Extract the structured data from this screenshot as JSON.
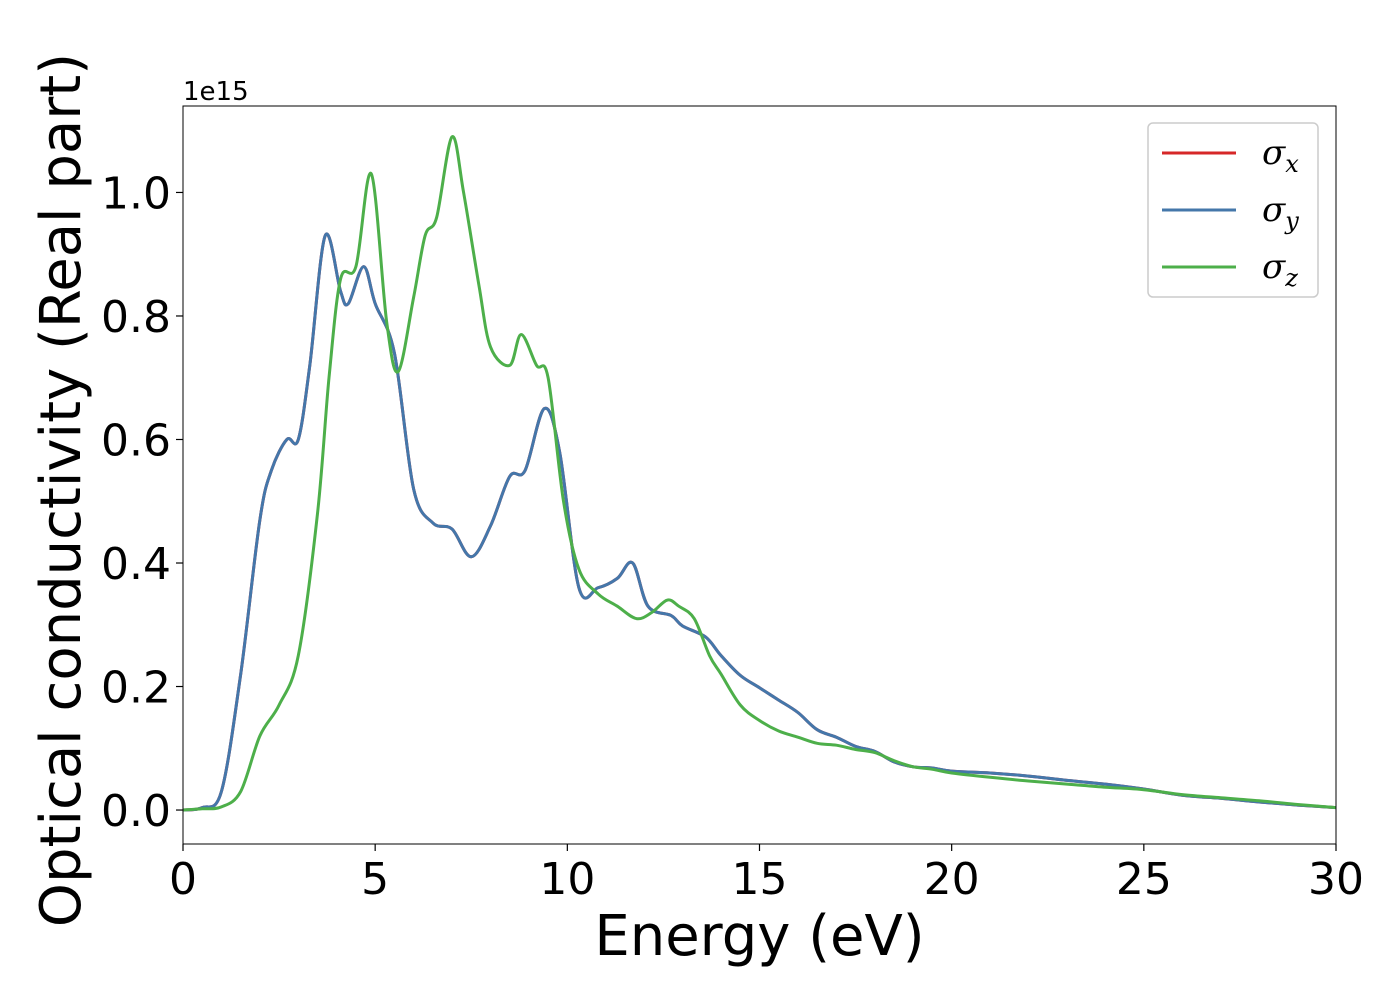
{
  "chart_data": {
    "type": "line",
    "xlabel": "Energy (eV)",
    "ylabel": "Optical conductivity (Real part)",
    "y_offset_text": "1e15",
    "xlim": [
      0,
      30
    ],
    "ylim": [
      -0.055,
      1.14
    ],
    "x_ticks": [
      0,
      5,
      10,
      15,
      20,
      25,
      30
    ],
    "x_tick_labels": [
      "0",
      "5",
      "10",
      "15",
      "20",
      "25",
      "30"
    ],
    "y_ticks": [
      0.0,
      0.2,
      0.4,
      0.6,
      0.8,
      1.0
    ],
    "y_tick_labels": [
      "0.0",
      "0.2",
      "0.4",
      "0.6",
      "0.8",
      "1.0"
    ],
    "grid": false,
    "legend_position": "top-right",
    "series": [
      {
        "name": "σx",
        "symbol": "σ",
        "sub": "x",
        "color": "#d62728",
        "x": [
          0,
          0.5,
          1,
          1.5,
          2,
          2.3,
          2.7,
          3,
          3.3,
          3.7,
          4.1,
          4.3,
          4.7,
          5,
          5.5,
          6,
          6.5,
          7,
          7.5,
          8,
          8.5,
          8.9,
          9.4,
          9.8,
          10.3,
          10.8,
          11.3,
          11.7,
          12.1,
          12.7,
          13,
          13.6,
          14,
          14.5,
          15,
          15.5,
          16,
          16.5,
          17,
          17.5,
          18,
          18.5,
          19,
          19.5,
          20,
          21,
          22,
          23,
          24,
          25,
          26,
          27,
          28,
          29,
          30
        ],
        "y": [
          0.0,
          0.004,
          0.03,
          0.22,
          0.47,
          0.55,
          0.6,
          0.6,
          0.72,
          0.93,
          0.84,
          0.82,
          0.88,
          0.82,
          0.74,
          0.52,
          0.465,
          0.455,
          0.41,
          0.46,
          0.54,
          0.55,
          0.65,
          0.58,
          0.36,
          0.36,
          0.375,
          0.4,
          0.33,
          0.315,
          0.298,
          0.28,
          0.25,
          0.218,
          0.198,
          0.178,
          0.158,
          0.13,
          0.118,
          0.103,
          0.095,
          0.078,
          0.07,
          0.068,
          0.063,
          0.06,
          0.055,
          0.048,
          0.042,
          0.034,
          0.024,
          0.019,
          0.013,
          0.008,
          0.004
        ]
      },
      {
        "name": "σy",
        "symbol": "σ",
        "sub": "y",
        "color": "#4477aa",
        "x": [
          0,
          0.5,
          1,
          1.5,
          2,
          2.3,
          2.7,
          3,
          3.3,
          3.7,
          4.1,
          4.3,
          4.7,
          5,
          5.5,
          6,
          6.5,
          7,
          7.5,
          8,
          8.5,
          8.9,
          9.4,
          9.8,
          10.3,
          10.8,
          11.3,
          11.7,
          12.1,
          12.7,
          13,
          13.6,
          14,
          14.5,
          15,
          15.5,
          16,
          16.5,
          17,
          17.5,
          18,
          18.5,
          19,
          19.5,
          20,
          21,
          22,
          23,
          24,
          25,
          26,
          27,
          28,
          29,
          30
        ],
        "y": [
          0.0,
          0.004,
          0.03,
          0.22,
          0.47,
          0.55,
          0.6,
          0.6,
          0.72,
          0.93,
          0.84,
          0.82,
          0.88,
          0.82,
          0.74,
          0.52,
          0.465,
          0.455,
          0.41,
          0.46,
          0.54,
          0.55,
          0.65,
          0.58,
          0.36,
          0.36,
          0.375,
          0.4,
          0.33,
          0.315,
          0.298,
          0.28,
          0.25,
          0.218,
          0.198,
          0.178,
          0.158,
          0.13,
          0.118,
          0.103,
          0.095,
          0.078,
          0.07,
          0.068,
          0.063,
          0.06,
          0.055,
          0.048,
          0.042,
          0.034,
          0.024,
          0.019,
          0.013,
          0.008,
          0.004
        ]
      },
      {
        "name": "σz",
        "symbol": "σ",
        "sub": "z",
        "color": "#4daf4a",
        "x": [
          0,
          0.5,
          1,
          1.5,
          2,
          2.5,
          3,
          3.5,
          3.8,
          4.1,
          4.5,
          4.9,
          5.3,
          5.6,
          6,
          6.3,
          6.6,
          7,
          7.3,
          7.7,
          8,
          8.5,
          8.8,
          9.2,
          9.5,
          9.9,
          10.3,
          10.8,
          11.3,
          11.8,
          12.2,
          12.6,
          12.9,
          13.3,
          13.7,
          14,
          14.5,
          15,
          15.5,
          16,
          16.5,
          17,
          17.5,
          18,
          18.5,
          19,
          19.5,
          20,
          21,
          22,
          23,
          24,
          25,
          26,
          27,
          28,
          29,
          30
        ],
        "y": [
          0.0,
          0.002,
          0.005,
          0.03,
          0.12,
          0.17,
          0.25,
          0.48,
          0.7,
          0.86,
          0.88,
          1.03,
          0.79,
          0.71,
          0.83,
          0.93,
          0.96,
          1.09,
          1.0,
          0.85,
          0.75,
          0.72,
          0.77,
          0.72,
          0.7,
          0.5,
          0.39,
          0.35,
          0.33,
          0.31,
          0.32,
          0.34,
          0.33,
          0.31,
          0.25,
          0.22,
          0.17,
          0.145,
          0.128,
          0.118,
          0.108,
          0.105,
          0.098,
          0.093,
          0.08,
          0.07,
          0.066,
          0.06,
          0.053,
          0.047,
          0.042,
          0.037,
          0.033,
          0.025,
          0.02,
          0.015,
          0.009,
          0.004
        ]
      }
    ]
  }
}
